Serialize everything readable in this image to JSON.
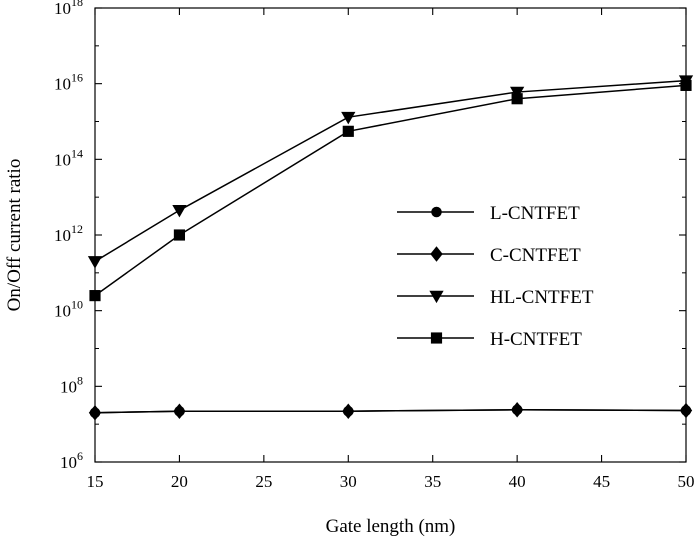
{
  "chart_data": {
    "type": "line",
    "title": "",
    "xlabel": "Gate length (nm)",
    "ylabel": "On/Off current ratio",
    "xlim": [
      15,
      50
    ],
    "ylim_log10": [
      6,
      18
    ],
    "yscale": "log",
    "x_ticks": [
      15,
      20,
      25,
      30,
      35,
      40,
      45,
      50
    ],
    "y_ticks": [
      {
        "base": "10",
        "exp": "6",
        "log10": 6
      },
      {
        "base": "10",
        "exp": "8",
        "log10": 8
      },
      {
        "base": "10",
        "exp": "10",
        "log10": 10
      },
      {
        "base": "10",
        "exp": "12",
        "log10": 12
      },
      {
        "base": "10",
        "exp": "14",
        "log10": 14
      },
      {
        "base": "10",
        "exp": "16",
        "log10": 16
      },
      {
        "base": "10",
        "exp": "18",
        "log10": 18
      }
    ],
    "grid": false,
    "legend_position": "right-center",
    "series": [
      {
        "name": "L-CNTFET",
        "marker": "circle",
        "x": [
          15,
          20,
          30,
          40,
          50
        ],
        "y": [
          20000000.0,
          22000000.0,
          22000000.0,
          24000000.0,
          23000000.0
        ]
      },
      {
        "name": "C-CNTFET",
        "marker": "diamond",
        "x": [
          15,
          20,
          30,
          40,
          50
        ],
        "y": [
          20000000.0,
          22000000.0,
          22000000.0,
          24000000.0,
          23000000.0
        ]
      },
      {
        "name": "HL-CNTFET",
        "marker": "triangle-down",
        "x": [
          15,
          20,
          30,
          40,
          50
        ],
        "y": [
          200000000000.0,
          4500000000000.0,
          1300000000000000.0,
          6000000000000000.0,
          1.2e+16
        ]
      },
      {
        "name": "H-CNTFET",
        "marker": "square",
        "x": [
          15,
          20,
          30,
          40,
          50
        ],
        "y": [
          25000000000.0,
          1000000000000.0,
          550000000000000.0,
          4000000000000000.0,
          9000000000000000.0
        ]
      }
    ],
    "colors": {
      "line": "#000000",
      "marker": "#000000"
    }
  }
}
